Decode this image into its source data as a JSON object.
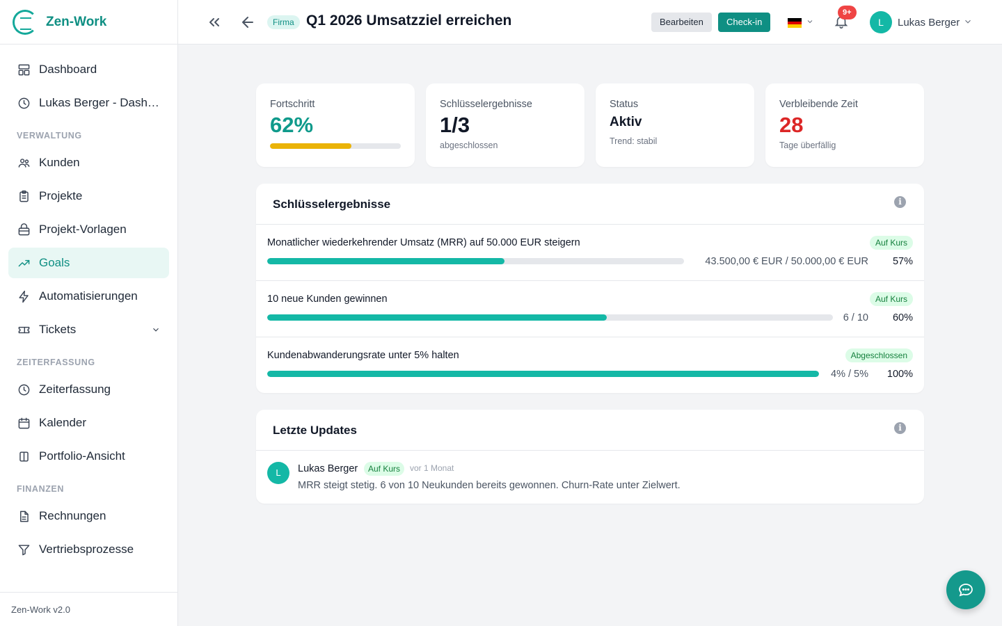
{
  "app": {
    "name": "Zen-Work",
    "version": "Zen-Work v2.0"
  },
  "sidebar": {
    "top_items": [
      {
        "label": "Dashboard",
        "icon": "dashboard-icon"
      },
      {
        "label": "Lukas Berger - Dashboard",
        "icon": "clock-icon"
      }
    ],
    "sections": [
      {
        "title": "VERWALTUNG",
        "items": [
          {
            "label": "Kunden",
            "icon": "users-icon"
          },
          {
            "label": "Projekte",
            "icon": "clipboard-icon"
          },
          {
            "label": "Projekt-Vorlagen",
            "icon": "template-icon"
          },
          {
            "label": "Goals",
            "icon": "trending-up-icon",
            "active": true
          },
          {
            "label": "Automatisierungen",
            "icon": "lightning-icon"
          },
          {
            "label": "Tickets",
            "icon": "ticket-icon",
            "expandable": true
          }
        ]
      },
      {
        "title": "ZEITERFASSUNG",
        "items": [
          {
            "label": "Zeiterfassung",
            "icon": "clock-icon"
          },
          {
            "label": "Kalender",
            "icon": "calendar-icon"
          },
          {
            "label": "Portfolio-Ansicht",
            "icon": "columns-icon"
          }
        ]
      },
      {
        "title": "FINANZEN",
        "items": [
          {
            "label": "Rechnungen",
            "icon": "document-icon"
          },
          {
            "label": "Vertriebsprozesse",
            "icon": "funnel-icon"
          }
        ]
      }
    ]
  },
  "header": {
    "scope_badge": "Firma",
    "title": "Q1 2026 Umsatzziel erreichen",
    "edit_label": "Bearbeiten",
    "checkin_label": "Check-in",
    "language": "de",
    "notification_count": "9+",
    "user": {
      "initial": "L",
      "name": "Lukas Berger"
    }
  },
  "stats": {
    "progress": {
      "label": "Fortschritt",
      "value": "62%",
      "fraction": 0.62
    },
    "key_results": {
      "label": "Schlüsselergebnisse",
      "value": "1/3",
      "sub": "abgeschlossen"
    },
    "status": {
      "label": "Status",
      "value": "Aktiv",
      "sub": "Trend: stabil"
    },
    "remaining": {
      "label": "Verbleibende Zeit",
      "value": "28",
      "sub": "Tage überfällig"
    }
  },
  "key_results_panel": {
    "title": "Schlüsselergebnisse",
    "items": [
      {
        "title": "Monatlicher wiederkehrender Umsatz (MRR) auf 50.000 EUR steigern",
        "badge": "Auf Kurs",
        "amount": "43.500,00 € EUR / 50.000,00 € EUR",
        "percent": "57%",
        "fraction": 0.57
      },
      {
        "title": "10 neue Kunden gewinnen",
        "badge": "Auf Kurs",
        "amount": "6 / 10",
        "percent": "60%",
        "fraction": 0.6
      },
      {
        "title": "Kundenabwanderungsrate unter 5% halten",
        "badge": "Abgeschlossen",
        "amount": "4% / 5%",
        "percent": "100%",
        "fraction": 1.0
      }
    ]
  },
  "updates_panel": {
    "title": "Letzte Updates",
    "items": [
      {
        "initial": "L",
        "author": "Lukas Berger",
        "badge": "Auf Kurs",
        "time": "vor 1 Monat",
        "text": "MRR steigt stetig. 6 von 10 Neukunden bereits gewonnen. Churn-Rate unter Zielwert."
      }
    ]
  },
  "colors": {
    "accent": "#0f8f83",
    "progress_bar": "#14b8a6",
    "warning_bar": "#eab308",
    "danger": "#dc2626"
  }
}
